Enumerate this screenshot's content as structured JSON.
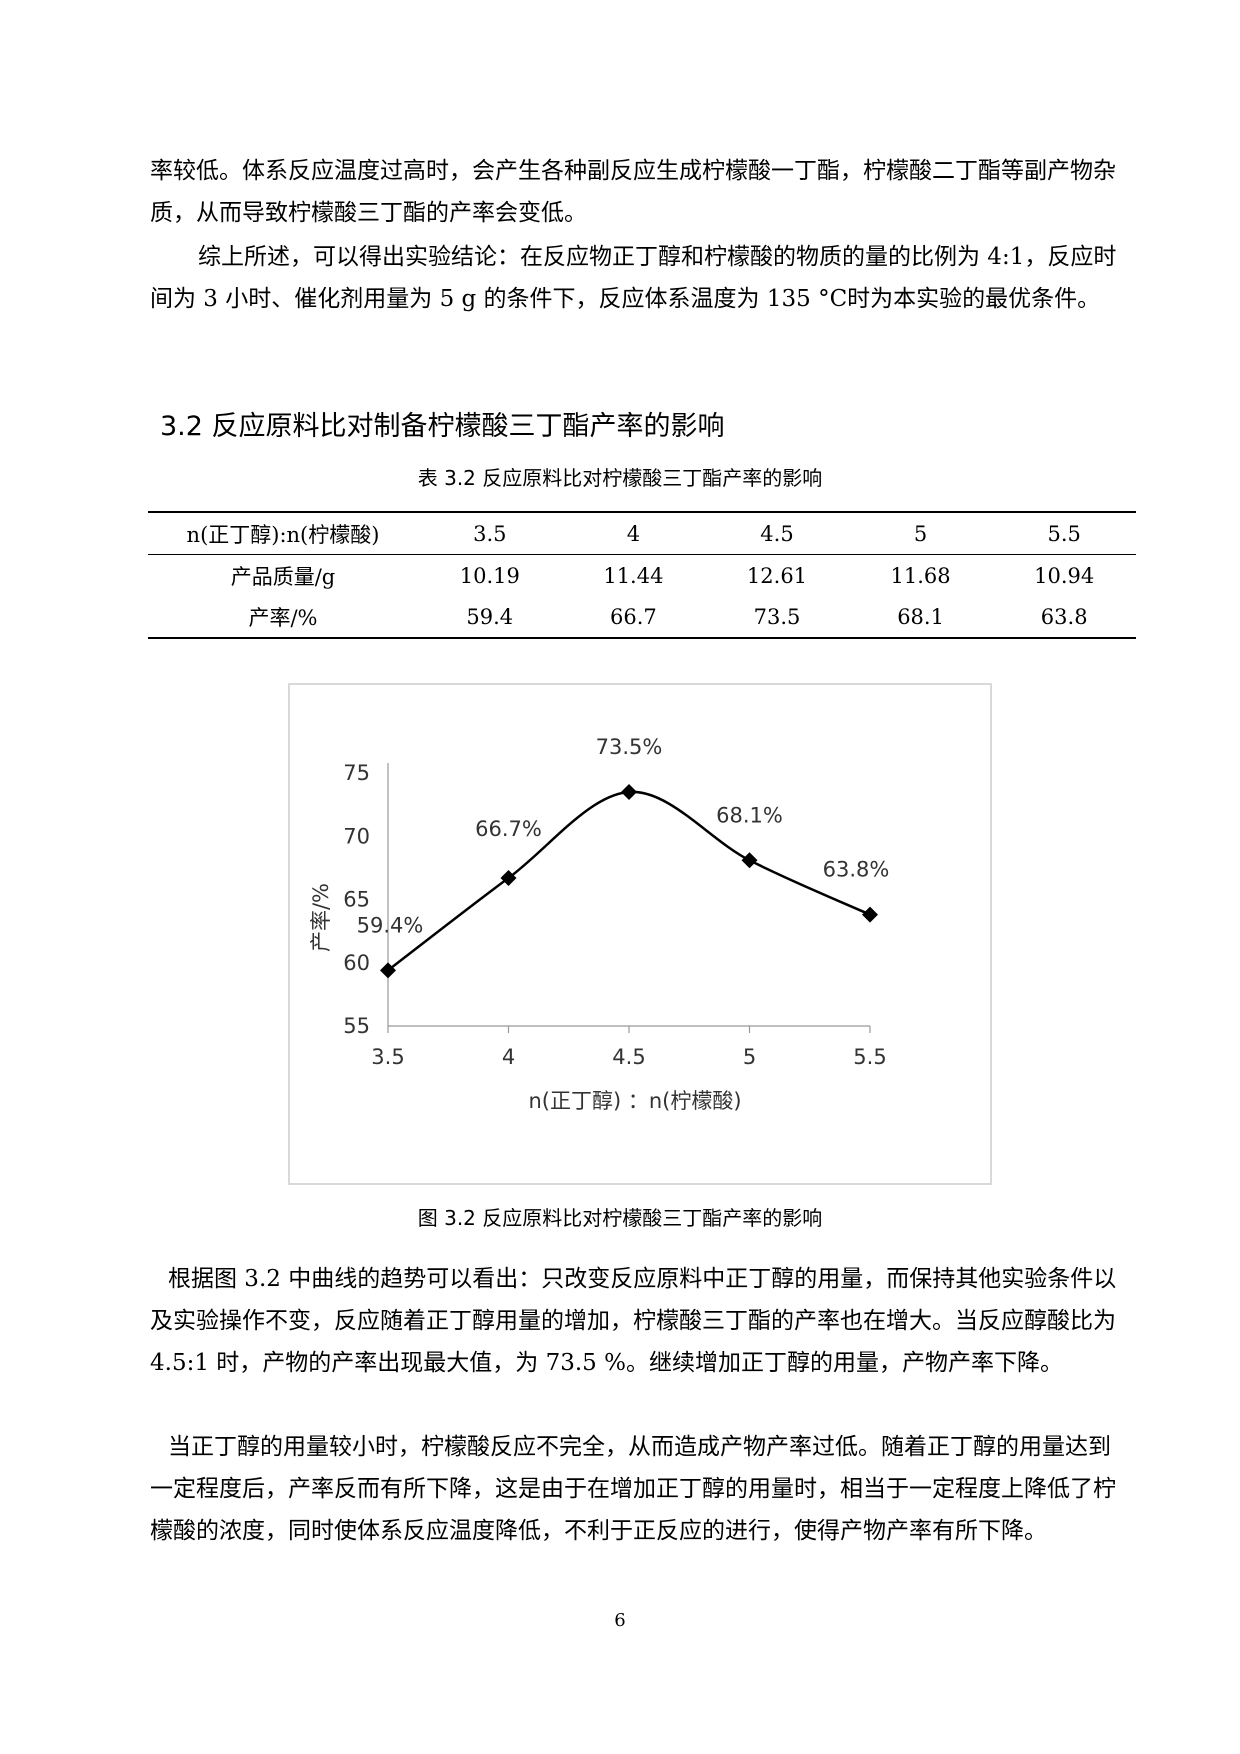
{
  "paragraphs": {
    "p1": "率较低。体系反应温度过高时，会产生各种副反应生成柠檬酸一丁酯，柠檬酸二丁酯等副产物杂质，从而导致柠檬酸三丁酯的产率会变低。",
    "p2": "综上所述，可以得出实验结论：在反应物正丁醇和柠檬酸的物质的量的比例为 4:1，反应时间为 3 小时、催化剂用量为 5 g 的条件下，反应体系温度为 135 °C时为本实验的最优条件。",
    "p3": "根据图 3.2 中曲线的趋势可以看出：只改变反应原料中正丁醇的用量，而保持其他实验条件以及实验操作不变，反应随着正丁醇用量的增加，柠檬酸三丁酯的产率也在增大。当反应醇酸比为 4.5:1 时，产物的产率出现最大值，为 73.5 %。继续增加正丁醇的用量，产物产率下降。",
    "p4": "当正丁醇的用量较小时，柠檬酸反应不完全，从而造成产物产率过低。随着正丁醇的用量达到一定程度后，产率反而有所下降，这是由于在增加正丁醇的用量时，相当于一定程度上降低了柠檬酸的浓度，同时使体系反应温度降低，不利于正反应的进行，使得产物产率有所下降。"
  },
  "section_title": "3.2 反应原料比对制备柠檬酸三丁酯产率的影响",
  "table": {
    "caption": "表 3.2  反应原料比对柠檬酸三丁酯产率的影响",
    "rows": [
      [
        "n(正丁醇):n(柠檬酸)",
        "3.5",
        "4",
        "4.5",
        "5",
        "5.5"
      ],
      [
        "产品质量/g",
        "10.19",
        "11.44",
        "12.61",
        "11.68",
        "10.94"
      ],
      [
        "产率/%",
        "59.4",
        "66.7",
        "73.5",
        "68.1",
        "63.8"
      ]
    ]
  },
  "chart_data": {
    "type": "line",
    "x": [
      "3.5",
      "4",
      "4.5",
      "5",
      "5.5"
    ],
    "series": [
      {
        "values": [
          59.4,
          66.7,
          73.5,
          68.1,
          63.8
        ],
        "labels": [
          "59.4%",
          "66.7%",
          "73.5%",
          "68.1%",
          "63.8%"
        ]
      }
    ],
    "xlabel": "n(正丁醇) ：n(柠檬酸)",
    "ylabel": "产率/%",
    "ylim": [
      55,
      75
    ],
    "yticks": [
      "55",
      "60",
      "65",
      "70",
      "75"
    ],
    "xticks": [
      "3.5",
      "4",
      "4.5",
      "5",
      "5.5"
    ],
    "grid": false,
    "smooth": true,
    "marker": "diamond",
    "color": "#000000"
  },
  "figure_caption": "图 3.2 反应原料比对柠檬酸三丁酯产率的影响",
  "page_number": "6"
}
